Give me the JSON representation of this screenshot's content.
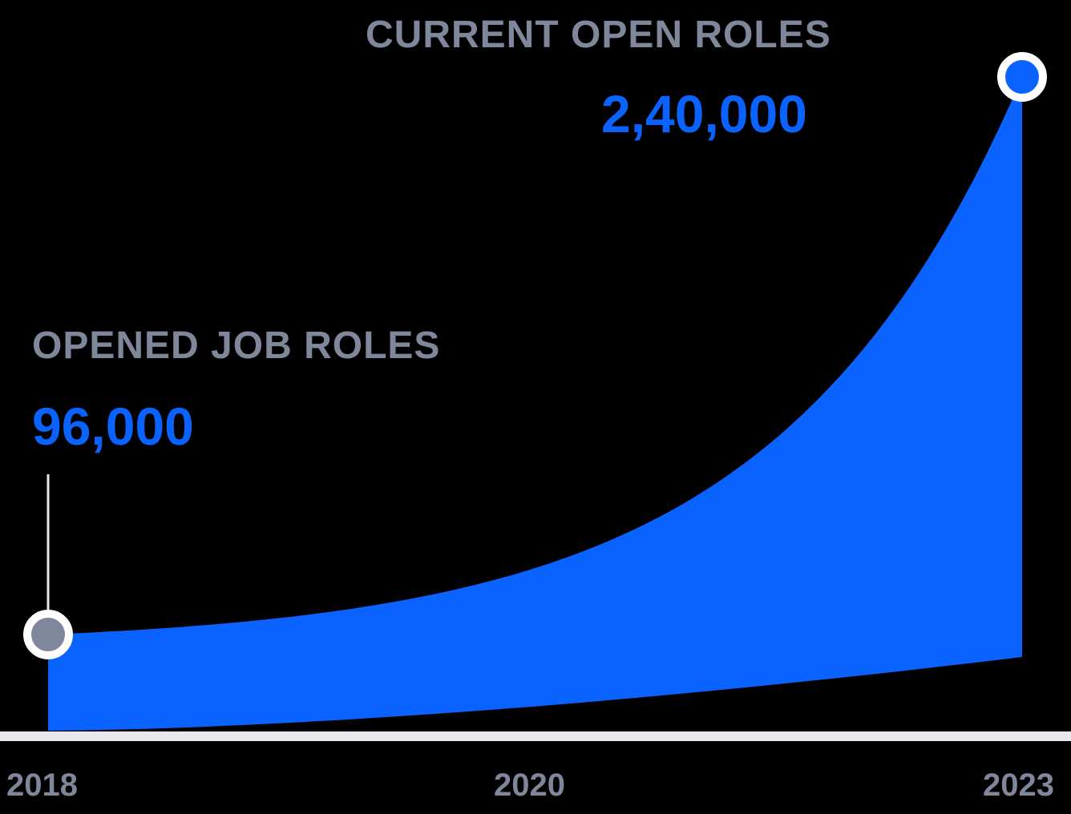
{
  "chart_data": {
    "type": "area",
    "x": [
      "2018",
      "2023"
    ],
    "values": [
      96000,
      240000
    ],
    "x_tick_labels": [
      "2018",
      "2020",
      "2023"
    ],
    "annotations": [
      {
        "x": "2018",
        "label": "OPENED JOB ROLES",
        "value_text": "96,000"
      },
      {
        "x": "2023",
        "label": "CURRENT OPEN ROLES",
        "value_text": "2,40,000"
      }
    ],
    "curve": "exponential",
    "grid": false,
    "legend": "none",
    "colors": {
      "fill": "#0a63ff",
      "start_marker": "#7f889b",
      "end_marker": "#0a63ff",
      "axis": "#e6e8ec"
    }
  }
}
